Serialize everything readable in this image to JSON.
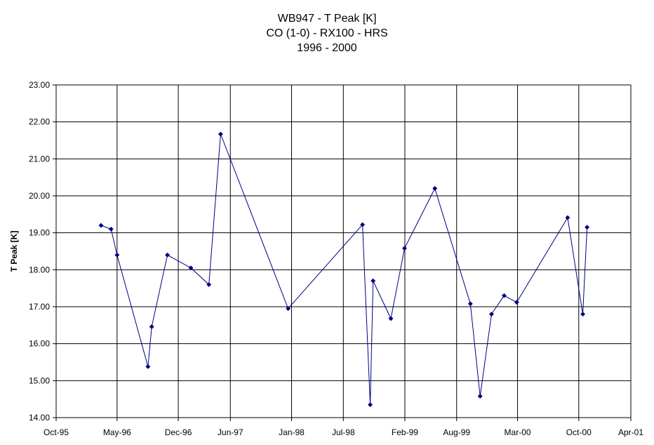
{
  "chart_data": {
    "type": "line",
    "title_lines": [
      "WB947 - T Peak [K]",
      "CO (1-0) - RX100 - HRS",
      "1996 - 2000"
    ],
    "xlabel": "",
    "ylabel": "T Peak [K]",
    "xlim": [
      "1995-10-01",
      "2001-04-01"
    ],
    "ylim": [
      14.0,
      23.0
    ],
    "x_ticks": [
      "Oct-95",
      "May-96",
      "Dec-96",
      "Jun-97",
      "Jan-98",
      "Jul-98",
      "Feb-99",
      "Aug-99",
      "Mar-00",
      "Oct-00",
      "Apr-01"
    ],
    "x_tick_dates": [
      "1995-10-01",
      "1996-05-01",
      "1996-12-01",
      "1997-06-01",
      "1998-01-01",
      "1998-07-01",
      "1999-02-01",
      "1999-08-01",
      "2000-03-01",
      "2000-10-01",
      "2001-04-01"
    ],
    "y_ticks": [
      "14.00",
      "15.00",
      "16.00",
      "17.00",
      "18.00",
      "19.00",
      "20.00",
      "21.00",
      "22.00",
      "23.00"
    ],
    "grid": true,
    "line_color": "#000080",
    "series": [
      {
        "x": [
          "1996-03-06",
          "1996-04-10",
          "1996-05-01",
          "1996-08-17",
          "1996-08-30",
          "1996-10-24",
          "1997-01-14",
          "1997-03-18",
          "1997-04-28",
          "1997-12-20",
          "1998-09-06",
          "1998-10-03",
          "1998-10-13",
          "1998-12-14",
          "1999-01-31",
          "1999-05-17",
          "1999-09-18",
          "1999-10-22",
          "1999-12-01",
          "2000-01-14",
          "2000-02-27",
          "2000-08-23",
          "2000-10-15",
          "2000-10-30"
        ],
        "y": [
          19.2,
          19.1,
          18.4,
          15.38,
          16.46,
          18.4,
          18.05,
          17.6,
          21.67,
          16.95,
          19.22,
          14.35,
          17.7,
          16.68,
          18.58,
          20.2,
          17.08,
          14.58,
          16.8,
          17.3,
          17.12,
          19.41,
          16.8,
          19.15
        ]
      }
    ]
  }
}
